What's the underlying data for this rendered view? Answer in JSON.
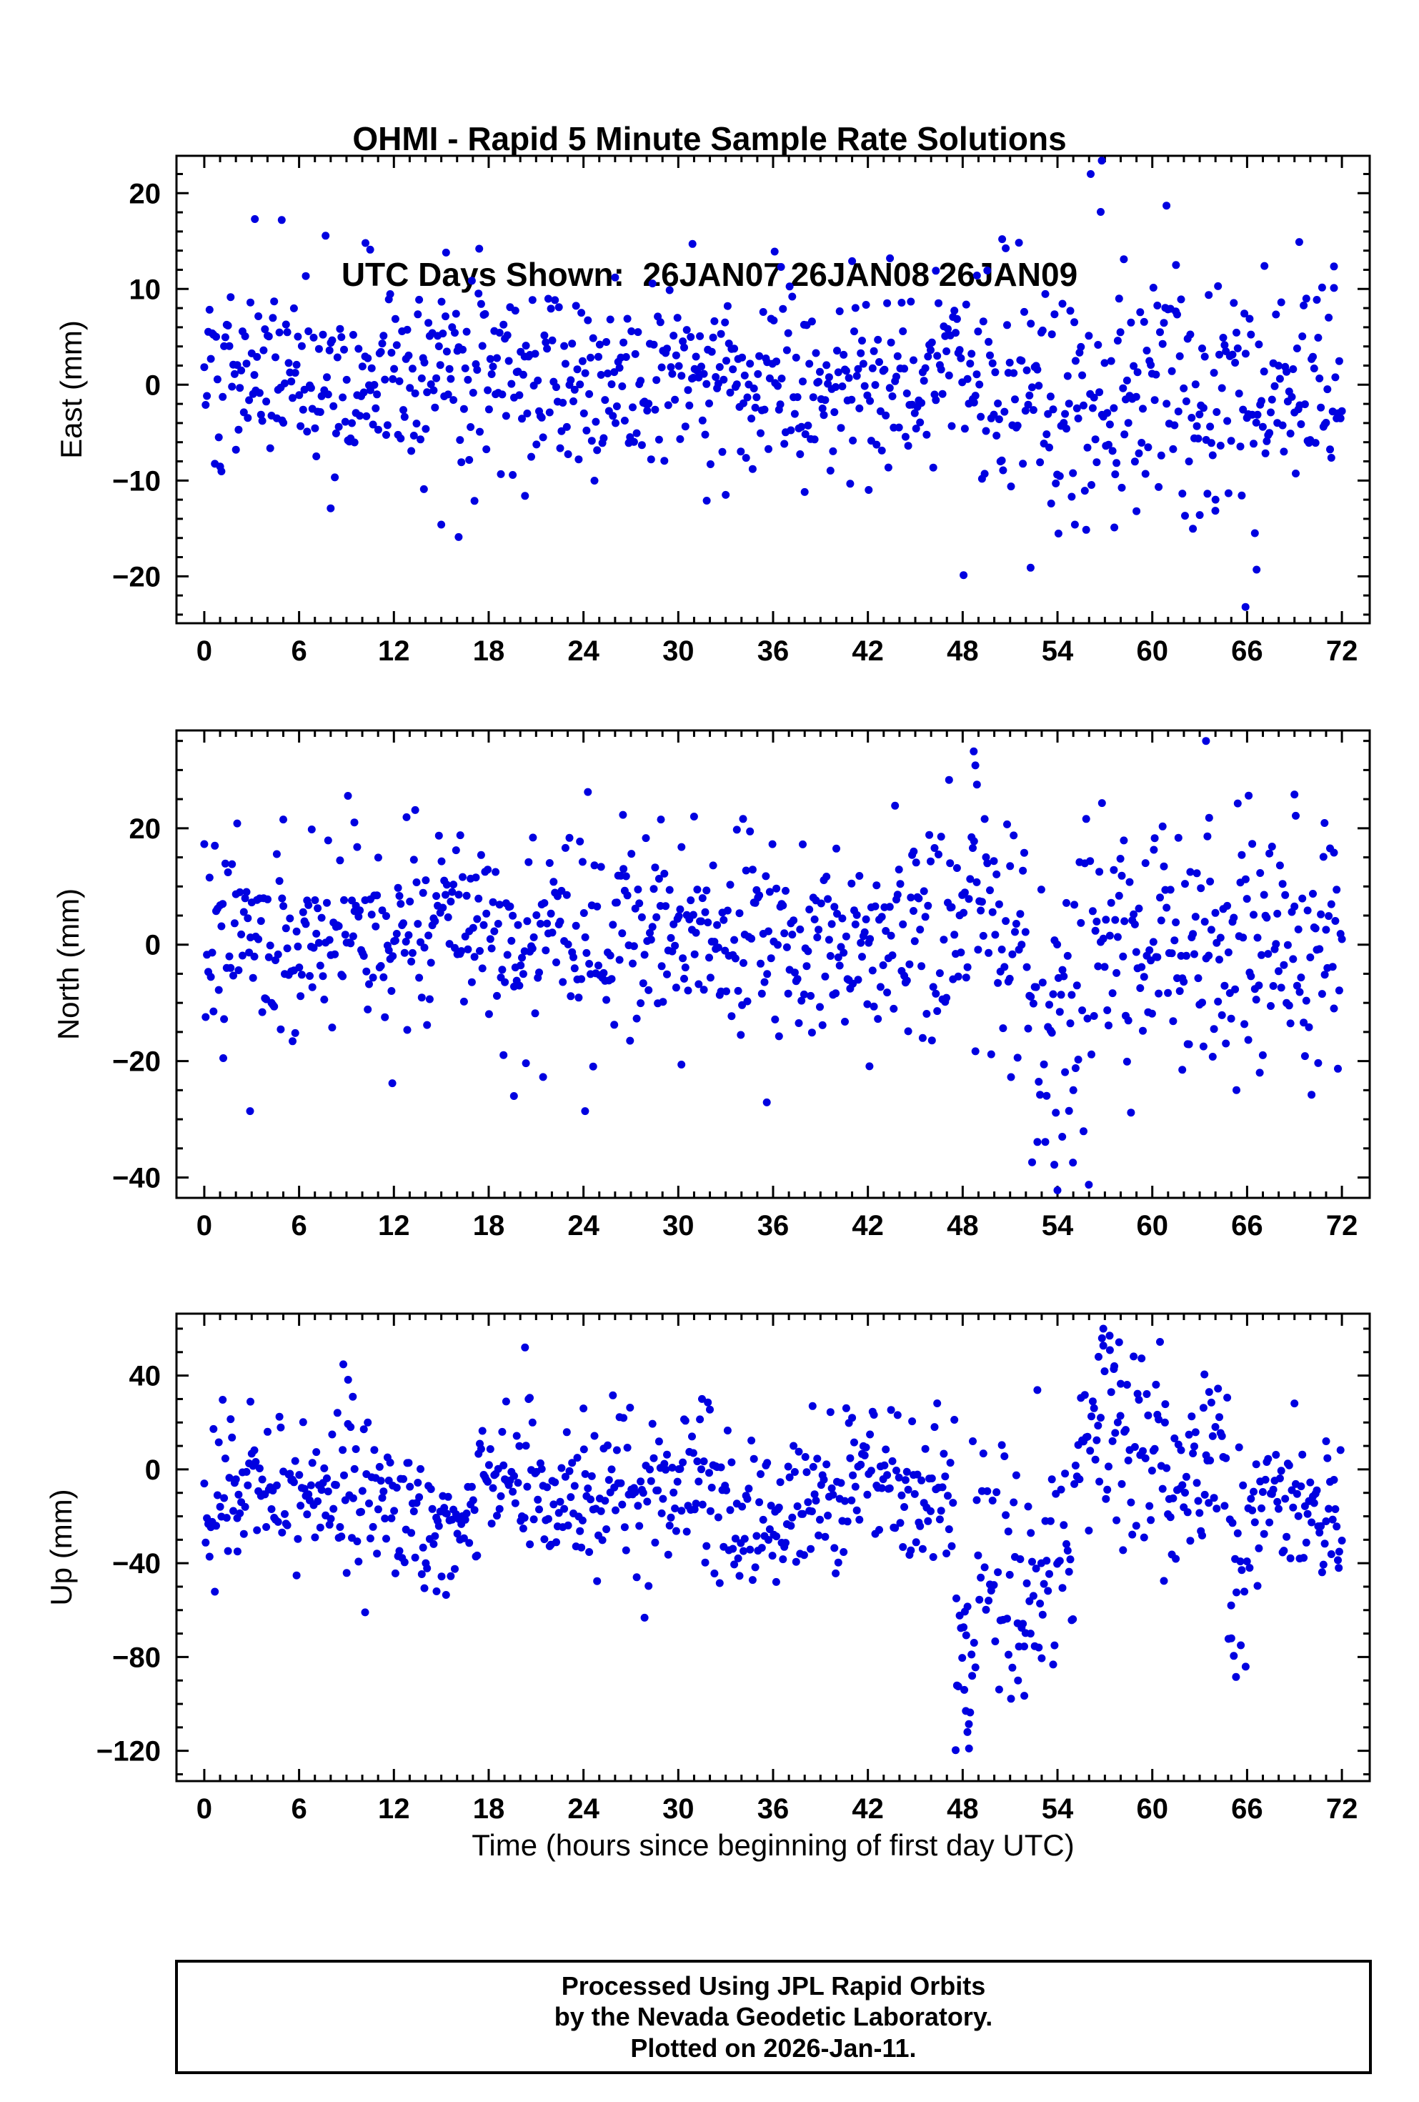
{
  "title": {
    "line1": "OHMI - Rapid 5 Minute Sample Rate Solutions",
    "line2": "UTC Days Shown:  26JAN07 26JAN08 26JAN09"
  },
  "xlabel": "Time (hours since beginning of first day UTC)",
  "footer": {
    "line1": "Processed Using JPL Rapid Orbits",
    "line2": "by the Nevada Geodetic Laboratory.",
    "line3": "Plotted on 2026-Jan-11."
  },
  "chart_data": [
    {
      "type": "scatter",
      "name": "east",
      "ylabel": "East (mm)",
      "marker_color": "#0000e0",
      "x_ticks": [
        0,
        6,
        12,
        18,
        24,
        30,
        36,
        42,
        48,
        54,
        60,
        66,
        72
      ],
      "x_minor_step": 1,
      "y_ticks": [
        -20,
        -10,
        0,
        10,
        20
      ],
      "y_minor_step": 2,
      "xlim": [
        -1.76,
        73.76
      ],
      "ylim": [
        -24.9,
        23.9
      ],
      "grid": false,
      "legend": false,
      "gen": {
        "seed": 101,
        "n": 864,
        "base": {
          "mean": 1.0,
          "std": 4.5
        },
        "events": [
          {
            "x0": 48,
            "x1": 72.1,
            "mean": -0.5,
            "std": 6.3
          }
        ],
        "outliers": [
          [
            3.2,
            17.3
          ],
          [
            4.9,
            17.2
          ],
          [
            8.0,
            -12.9
          ],
          [
            10.2,
            14.8
          ],
          [
            10.5,
            14.1
          ],
          [
            13.9,
            -10.9
          ],
          [
            15.0,
            -14.6
          ],
          [
            16.1,
            -15.9
          ],
          [
            15.3,
            13.8
          ],
          [
            17.4,
            14.2
          ],
          [
            20.3,
            -11.6
          ],
          [
            26.0,
            11.2
          ],
          [
            30.9,
            14.7
          ],
          [
            31.8,
            -12.1
          ],
          [
            33.0,
            -11.5
          ],
          [
            36.1,
            13.9
          ],
          [
            36.5,
            12.3
          ],
          [
            38.0,
            -11.2
          ],
          [
            41.0,
            12.9
          ],
          [
            43.4,
            13.2
          ],
          [
            46.3,
            11.9
          ],
          [
            48.9,
            11.4
          ],
          [
            50.5,
            15.2
          ],
          [
            52.3,
            -19.1
          ],
          [
            53.6,
            -12.4
          ],
          [
            55.1,
            -14.6
          ],
          [
            56.1,
            22.0
          ],
          [
            56.8,
            23.4
          ],
          [
            57.6,
            -14.9
          ],
          [
            58.2,
            13.1
          ],
          [
            59.0,
            -13.2
          ],
          [
            60.9,
            18.7
          ],
          [
            61.5,
            12.5
          ],
          [
            63.0,
            -13.6
          ],
          [
            64.0,
            -12.0
          ],
          [
            65.9,
            -23.2
          ],
          [
            66.6,
            -19.3
          ],
          [
            67.1,
            12.4
          ],
          [
            69.3,
            14.9
          ],
          [
            71.5,
            10.1
          ]
        ]
      }
    },
    {
      "type": "scatter",
      "name": "north",
      "ylabel": "North (mm)",
      "marker_color": "#0000e0",
      "x_ticks": [
        0,
        6,
        12,
        18,
        24,
        30,
        36,
        42,
        48,
        54,
        60,
        66,
        72
      ],
      "x_minor_step": 1,
      "y_ticks": [
        -40,
        -20,
        0,
        20
      ],
      "y_minor_step": 5,
      "xlim": [
        -1.76,
        73.76
      ],
      "ylim": [
        -43.5,
        36.8
      ],
      "grid": false,
      "legend": false,
      "gen": {
        "seed": 202,
        "n": 864,
        "base": {
          "mean": 1.5,
          "std": 8.0
        },
        "events": [
          {
            "x0": 47.8,
            "x1": 49.6,
            "mean": 12,
            "std": 11
          },
          {
            "x0": 49.6,
            "x1": 52.0,
            "mean": 0,
            "std": 10
          },
          {
            "x0": 52.0,
            "x1": 56.2,
            "mean": -14,
            "std": 13
          },
          {
            "x0": 56.2,
            "x1": 72.1,
            "mean": 0.5,
            "std": 10
          }
        ],
        "outliers": [
          [
            1.2,
            -19.5
          ],
          [
            2.9,
            -28.6
          ],
          [
            5.0,
            21.5
          ],
          [
            6.8,
            19.8
          ],
          [
            9.5,
            21.0
          ],
          [
            11.9,
            -23.8
          ],
          [
            12.8,
            21.9
          ],
          [
            16.2,
            18.8
          ],
          [
            19.6,
            -26.0
          ],
          [
            20.8,
            18.4
          ],
          [
            24.1,
            -28.6
          ],
          [
            26.5,
            22.3
          ],
          [
            28.9,
            21.5
          ],
          [
            30.2,
            -20.6
          ],
          [
            31.0,
            22.0
          ],
          [
            34.1,
            21.6
          ],
          [
            35.6,
            -27.1
          ],
          [
            40.0,
            16.5
          ],
          [
            42.1,
            -20.9
          ],
          [
            44.9,
            16.0
          ],
          [
            47.2,
            14.0
          ],
          [
            48.7,
            33.2
          ],
          [
            48.8,
            30.8
          ],
          [
            48.9,
            27.5
          ],
          [
            51.0,
            13.5
          ],
          [
            53.8,
            -37.8
          ],
          [
            54.0,
            -42.2
          ],
          [
            54.3,
            -33.0
          ],
          [
            55.0,
            -25.0
          ],
          [
            58.2,
            17.9
          ],
          [
            60.1,
            16.3
          ],
          [
            61.9,
            -21.5
          ],
          [
            63.4,
            35.0
          ],
          [
            63.6,
            21.8
          ],
          [
            66.1,
            25.6
          ],
          [
            66.8,
            -22.0
          ],
          [
            69.0,
            25.8
          ],
          [
            70.9,
            20.9
          ],
          [
            71.5,
            15.8
          ]
        ]
      }
    },
    {
      "type": "scatter",
      "name": "up",
      "ylabel": "Up (mm)",
      "marker_color": "#0000e0",
      "x_ticks": [
        0,
        6,
        12,
        18,
        24,
        30,
        36,
        42,
        48,
        54,
        60,
        66,
        72
      ],
      "x_minor_step": 1,
      "y_ticks": [
        -120,
        -80,
        -40,
        0,
        40
      ],
      "y_minor_step": 10,
      "xlim": [
        -1.76,
        73.76
      ],
      "ylim": [
        -132.9,
        66.4
      ],
      "grid": false,
      "legend": false,
      "gen": {
        "seed": 303,
        "n": 864,
        "base": {
          "mean": -8,
          "std": 16
        },
        "events": [
          {
            "x0": 12.0,
            "x1": 17.0,
            "mean": -22,
            "std": 12
          },
          {
            "x0": 33.0,
            "x1": 37.0,
            "mean": -24,
            "std": 12
          },
          {
            "x0": 47.5,
            "x1": 48.6,
            "mean": -75,
            "std": 28
          },
          {
            "x0": 48.6,
            "x1": 50.8,
            "mean": -45,
            "std": 30
          },
          {
            "x0": 50.8,
            "x1": 52.6,
            "mean": -60,
            "std": 25
          },
          {
            "x0": 52.6,
            "x1": 55.2,
            "mean": -35,
            "std": 25
          },
          {
            "x0": 55.2,
            "x1": 58.6,
            "mean": 18,
            "std": 22
          },
          {
            "x0": 58.6,
            "x1": 60.5,
            "mean": 5,
            "std": 18
          },
          {
            "x0": 63.0,
            "x1": 64.5,
            "mean": 5,
            "std": 20
          },
          {
            "x0": 64.8,
            "x1": 66.2,
            "mean": -45,
            "std": 25
          },
          {
            "x0": 66.2,
            "x1": 72.1,
            "mean": -15,
            "std": 14
          }
        ],
        "outliers": [
          [
            2.1,
            -35.0
          ],
          [
            8.8,
            44.8
          ],
          [
            9.1,
            38.2
          ],
          [
            9.4,
            31.0
          ],
          [
            14.7,
            -52.0
          ],
          [
            15.3,
            -53.5
          ],
          [
            20.3,
            52.0
          ],
          [
            20.6,
            30.5
          ],
          [
            24.0,
            26.0
          ],
          [
            31.5,
            30.0
          ],
          [
            32.0,
            25.5
          ],
          [
            36.2,
            -48.0
          ],
          [
            38.5,
            27.0
          ],
          [
            41.0,
            22.0
          ],
          [
            47.6,
            -55.0
          ],
          [
            48.1,
            -94.0
          ],
          [
            48.2,
            -103.0
          ],
          [
            48.3,
            -112.0
          ],
          [
            48.4,
            -119.0
          ],
          [
            48.6,
            -88.0
          ],
          [
            50.9,
            -79.0
          ],
          [
            51.5,
            -90.0
          ],
          [
            51.9,
            -96.5
          ],
          [
            52.3,
            -70.0
          ],
          [
            53.0,
            -80.5
          ],
          [
            56.6,
            48.0
          ],
          [
            56.9,
            60.0
          ],
          [
            57.3,
            57.0
          ],
          [
            57.6,
            44.0
          ],
          [
            58.0,
            36.5
          ],
          [
            60.8,
            20.0
          ],
          [
            63.3,
            40.5
          ],
          [
            63.6,
            33.0
          ],
          [
            65.0,
            -72.0
          ],
          [
            65.3,
            -88.5
          ],
          [
            65.6,
            -75.0
          ],
          [
            71.0,
            12.0
          ],
          [
            71.8,
            -42.0
          ]
        ]
      }
    }
  ]
}
